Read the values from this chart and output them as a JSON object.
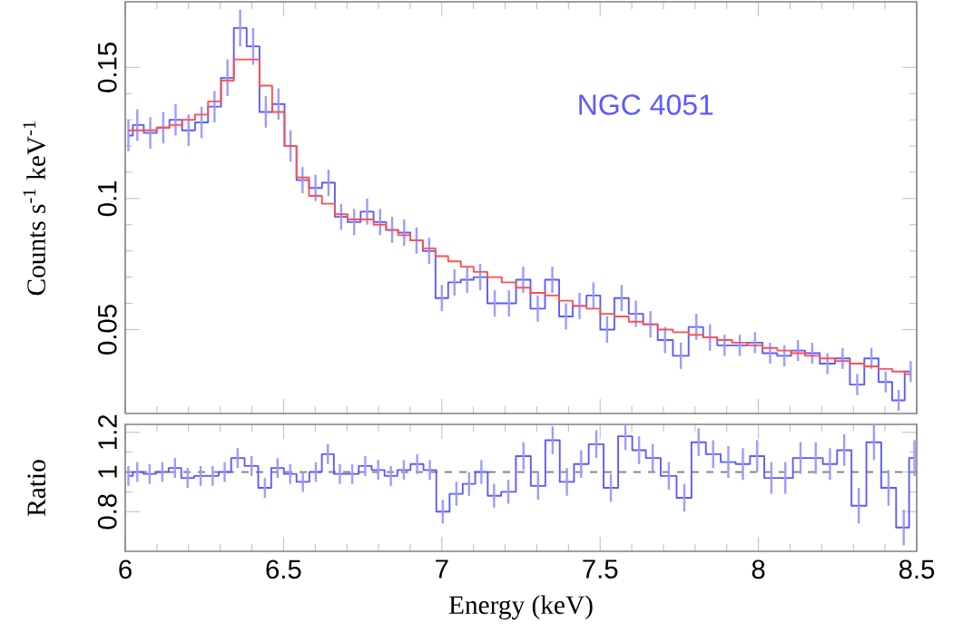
{
  "chart_data": [
    {
      "type": "step",
      "ylabel": "Counts s$^{-1}$ keV$^{-1}$",
      "annotations": [
        "NGC 4051"
      ],
      "xlim": [
        6,
        8.5
      ],
      "xticks": [
        6,
        6.5,
        7,
        7.5,
        8,
        8.5
      ],
      "ylim": [
        0.018,
        0.175
      ],
      "yticks": [
        0.05,
        0.1,
        0.15
      ],
      "tick_labels": "y",
      "series": [
        {
          "color": "#5a5aff",
          "x": [
            6.01,
            6.038,
            6.079,
            6.12,
            6.159,
            6.2,
            6.241,
            6.282,
            6.323,
            6.363,
            6.404,
            6.444,
            6.484,
            6.522,
            6.56,
            6.601,
            6.642,
            6.682,
            6.723,
            6.764,
            6.805,
            6.843,
            6.881,
            6.92,
            6.96,
            7.0,
            7.04,
            7.08,
            7.121,
            7.167,
            7.212,
            7.257,
            7.303,
            7.349,
            7.392,
            7.435,
            7.479,
            7.522,
            7.568,
            7.613,
            7.659,
            7.705,
            7.755,
            7.804,
            7.847,
            7.893,
            7.941,
            7.989,
            8.037,
            8.082,
            8.125,
            8.17,
            8.218,
            8.266,
            8.312,
            8.357,
            8.402,
            8.443,
            8.481
          ],
          "values": [
            0.124,
            0.128,
            0.125,
            0.127,
            0.13,
            0.126,
            0.129,
            0.135,
            0.146,
            0.165,
            0.158,
            0.133,
            0.136,
            0.12,
            0.107,
            0.104,
            0.106,
            0.093,
            0.091,
            0.095,
            0.091,
            0.088,
            0.087,
            0.084,
            0.08,
            0.062,
            0.068,
            0.069,
            0.07,
            0.06,
            0.06,
            0.069,
            0.058,
            0.069,
            0.055,
            0.059,
            0.063,
            0.05,
            0.062,
            0.056,
            0.052,
            0.046,
            0.04,
            0.051,
            0.047,
            0.044,
            0.044,
            0.045,
            0.041,
            0.04,
            0.042,
            0.041,
            0.037,
            0.039,
            0.029,
            0.039,
            0.03,
            0.023,
            0.034
          ],
          "errors": [
            0.006,
            0.006,
            0.006,
            0.006,
            0.006,
            0.006,
            0.006,
            0.006,
            0.007,
            0.007,
            0.007,
            0.006,
            0.006,
            0.006,
            0.005,
            0.005,
            0.005,
            0.005,
            0.005,
            0.005,
            0.005,
            0.005,
            0.005,
            0.005,
            0.005,
            0.005,
            0.005,
            0.005,
            0.005,
            0.005,
            0.005,
            0.005,
            0.005,
            0.005,
            0.005,
            0.005,
            0.005,
            0.005,
            0.005,
            0.005,
            0.005,
            0.005,
            0.005,
            0.005,
            0.005,
            0.004,
            0.004,
            0.004,
            0.004,
            0.004,
            0.004,
            0.004,
            0.004,
            0.004,
            0.004,
            0.004,
            0.004,
            0.004,
            0.004
          ]
        },
        {
          "color": "#ff5050",
          "x": [
            6.01,
            6.038,
            6.079,
            6.12,
            6.159,
            6.2,
            6.241,
            6.282,
            6.323,
            6.363,
            6.404,
            6.444,
            6.484,
            6.522,
            6.56,
            6.601,
            6.642,
            6.682,
            6.723,
            6.764,
            6.805,
            6.843,
            6.881,
            6.92,
            6.96,
            7.0,
            7.04,
            7.08,
            7.121,
            7.167,
            7.212,
            7.257,
            7.303,
            7.349,
            7.392,
            7.435,
            7.479,
            7.522,
            7.568,
            7.613,
            7.659,
            7.705,
            7.755,
            7.804,
            7.847,
            7.893,
            7.941,
            7.989,
            8.037,
            8.082,
            8.125,
            8.17,
            8.218,
            8.266,
            8.312,
            8.357,
            8.402,
            8.443,
            8.481
          ],
          "values": [
            0.126,
            0.126,
            0.126,
            0.127,
            0.128,
            0.13,
            0.132,
            0.137,
            0.145,
            0.153,
            0.153,
            0.143,
            0.133,
            0.12,
            0.108,
            0.101,
            0.098,
            0.094,
            0.092,
            0.092,
            0.09,
            0.088,
            0.086,
            0.084,
            0.081,
            0.078,
            0.076,
            0.074,
            0.072,
            0.07,
            0.068,
            0.066,
            0.064,
            0.063,
            0.061,
            0.059,
            0.058,
            0.056,
            0.055,
            0.053,
            0.052,
            0.05,
            0.049,
            0.048,
            0.047,
            0.046,
            0.045,
            0.044,
            0.043,
            0.042,
            0.041,
            0.04,
            0.039,
            0.038,
            0.037,
            0.036,
            0.035,
            0.034,
            0.033
          ]
        }
      ]
    },
    {
      "type": "step",
      "xlabel": "Energy (keV)",
      "ylabel": "Ratio",
      "xlim": [
        6,
        8.5
      ],
      "xticks": [
        6,
        6.5,
        7,
        7.5,
        8,
        8.5
      ],
      "ylim": [
        0.6,
        1.24
      ],
      "yticks": [
        0.8,
        1,
        1.2
      ],
      "ref_lines": [
        {
          "axis": "y",
          "value": 1,
          "color": "#808080",
          "line_style": "dashed"
        }
      ],
      "series": [
        {
          "color": "#5a5aff",
          "x": [
            6.01,
            6.038,
            6.077,
            6.117,
            6.157,
            6.197,
            6.238,
            6.276,
            6.314,
            6.355,
            6.399,
            6.441,
            6.481,
            6.521,
            6.561,
            6.602,
            6.64,
            6.678,
            6.717,
            6.758,
            6.799,
            6.839,
            6.88,
            6.922,
            6.962,
            7.003,
            7.046,
            7.086,
            7.125,
            7.165,
            7.21,
            7.258,
            7.304,
            7.35,
            7.395,
            7.44,
            7.488,
            7.534,
            7.58,
            7.623,
            7.666,
            7.717,
            7.766,
            7.811,
            7.857,
            7.905,
            7.951,
            7.996,
            8.041,
            8.085,
            8.133,
            8.181,
            8.226,
            8.271,
            8.317,
            8.365,
            8.411,
            8.459,
            8.493
          ],
          "values": [
            0.98,
            1.0,
            0.99,
            1.0,
            1.02,
            0.97,
            0.98,
            0.98,
            1.0,
            1.07,
            1.03,
            0.92,
            1.02,
            0.99,
            0.95,
            1.0,
            1.09,
            0.99,
            0.99,
            1.03,
            1.01,
            0.98,
            1.01,
            1.04,
            1.01,
            0.8,
            0.89,
            0.94,
            1.0,
            0.88,
            0.9,
            1.08,
            0.93,
            1.16,
            0.95,
            1.04,
            1.14,
            0.92,
            1.18,
            1.11,
            1.07,
            0.98,
            0.87,
            1.15,
            1.09,
            1.05,
            1.04,
            1.08,
            0.97,
            0.97,
            1.07,
            1.07,
            1.04,
            1.11,
            0.83,
            1.15,
            0.92,
            0.72,
            1.07
          ],
          "errors": [
            0.05,
            0.05,
            0.05,
            0.05,
            0.05,
            0.05,
            0.05,
            0.05,
            0.05,
            0.05,
            0.05,
            0.05,
            0.05,
            0.05,
            0.05,
            0.05,
            0.05,
            0.05,
            0.05,
            0.05,
            0.05,
            0.05,
            0.05,
            0.05,
            0.05,
            0.06,
            0.06,
            0.06,
            0.06,
            0.06,
            0.06,
            0.07,
            0.07,
            0.07,
            0.07,
            0.07,
            0.07,
            0.07,
            0.07,
            0.07,
            0.07,
            0.07,
            0.07,
            0.07,
            0.07,
            0.08,
            0.08,
            0.08,
            0.08,
            0.08,
            0.08,
            0.08,
            0.08,
            0.08,
            0.09,
            0.09,
            0.09,
            0.09,
            0.09
          ]
        }
      ]
    }
  ]
}
